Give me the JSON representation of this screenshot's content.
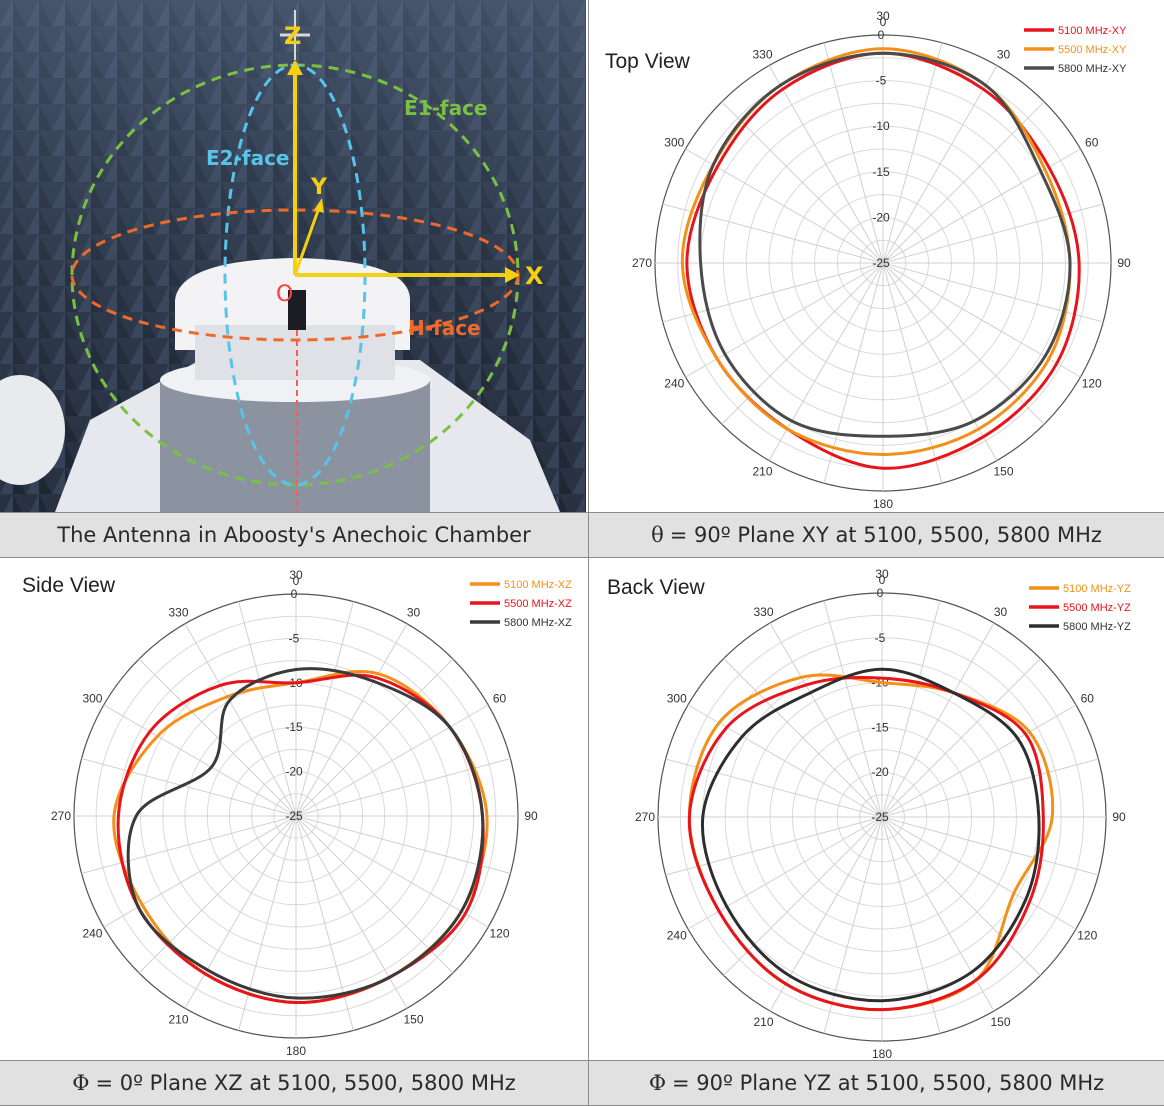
{
  "photo": {
    "caption": "The Antenna in Aboosty's Anechoic Chamber",
    "axis_labels": {
      "z": "Z",
      "y": "Y",
      "x": "X",
      "origin": "O"
    },
    "face_labels": {
      "e1": "E1-face",
      "e2": "E2-face",
      "h": "H-face"
    },
    "colors": {
      "e1": "#7ac143",
      "e2": "#58c4ea",
      "h": "#ee6a2a",
      "axis": "#f4d012"
    }
  },
  "panels": [
    {
      "id": "xy",
      "title": "Top View",
      "caption_symbol": "θ",
      "caption_text": " = 90º Plane XY at 5100, 5500, 5800 MHz"
    },
    {
      "id": "xz",
      "title": "Side View",
      "caption_symbol": "Φ",
      "caption_text": " = 0º Plane XZ at 5100, 5500, 5800 MHz"
    },
    {
      "id": "yz",
      "title": "Back View",
      "caption_symbol": "Φ",
      "caption_text": " = 90º Plane YZ at 5100, 5500, 5800 MHz"
    }
  ],
  "chart_data": [
    {
      "type": "line",
      "id": "xy",
      "title": "Top View",
      "polar": true,
      "angle_ticks": [
        "0",
        "30",
        "60",
        "90",
        "120",
        "150",
        "180",
        "210",
        "240",
        "270",
        "300",
        "330"
      ],
      "top_label": "30",
      "radial_ticks": [
        "0",
        "-5",
        "-10",
        "-15",
        "-20",
        "-25"
      ],
      "rlim": [
        -25,
        0
      ],
      "grid": true,
      "legend": "top-right",
      "angles": [
        0,
        30,
        60,
        90,
        120,
        150,
        180,
        210,
        240,
        270,
        300,
        330
      ],
      "series": [
        {
          "name": "5100 MHz-XY",
          "color": "#e8141c",
          "values": [
            -2,
            -3,
            -4,
            -3.5,
            -3,
            -3,
            -2.5,
            -4,
            -4,
            -3.5,
            -4,
            -3
          ]
        },
        {
          "name": "5500 MHz-XY",
          "color": "#f39019",
          "values": [
            -1.5,
            -2.5,
            -4.5,
            -4.5,
            -4,
            -4,
            -4,
            -4,
            -4,
            -3,
            -3.5,
            -2.5
          ]
        },
        {
          "name": "5800 MHz-XY",
          "color": "#4a4a4a",
          "values": [
            -2,
            -2.5,
            -5,
            -4.5,
            -4.5,
            -5,
            -6,
            -5,
            -5,
            -5,
            -3.5,
            -2.5
          ]
        }
      ]
    },
    {
      "type": "line",
      "id": "xz",
      "title": "Side View",
      "polar": true,
      "angle_ticks": [
        "0",
        "30",
        "60",
        "90",
        "120",
        "150",
        "180",
        "210",
        "240",
        "270",
        "300",
        "330"
      ],
      "top_label": "30",
      "radial_ticks": [
        "0",
        "-5",
        "-10",
        "-15",
        "-20",
        "-25"
      ],
      "rlim": [
        -25,
        0
      ],
      "grid": true,
      "legend": "top-right",
      "angles": [
        0,
        30,
        60,
        90,
        120,
        150,
        180,
        210,
        240,
        270,
        300,
        330
      ],
      "series": [
        {
          "name": "5100 MHz-XZ",
          "color": "#f39019",
          "values": [
            -10,
            -6.5,
            -5,
            -3.5,
            -3.5,
            -4,
            -4,
            -4.5,
            -5,
            -4.5,
            -7,
            -9.5
          ]
        },
        {
          "name": "5500 MHz-XZ",
          "color": "#e8141c",
          "values": [
            -10,
            -7,
            -5,
            -4,
            -3,
            -4,
            -4,
            -4.5,
            -4.5,
            -5,
            -6,
            -8
          ]
        },
        {
          "name": "5800 MHz-XZ",
          "color": "#3a3a3a",
          "values": [
            -8.5,
            -7.5,
            -5,
            -4,
            -3.5,
            -4,
            -4.5,
            -5,
            -4.5,
            -7,
            -14,
            -10
          ]
        }
      ]
    },
    {
      "type": "line",
      "id": "yz",
      "title": "Back View",
      "polar": true,
      "angle_ticks": [
        "0",
        "30",
        "60",
        "90",
        "120",
        "150",
        "180",
        "210",
        "240",
        "270",
        "300",
        "330"
      ],
      "top_label": "30",
      "radial_ticks": [
        "0",
        "-5",
        "-10",
        "-15",
        "-20",
        "-25"
      ],
      "rlim": [
        -25,
        0
      ],
      "grid": true,
      "legend": "top-right",
      "angles": [
        0,
        30,
        60,
        90,
        120,
        150,
        180,
        210,
        240,
        270,
        300,
        330
      ],
      "series": [
        {
          "name": "5100 MHz-YZ",
          "color": "#f39019",
          "values": [
            -10,
            -9,
            -6,
            -6,
            -8,
            -4,
            -3.5,
            -3.5,
            -4,
            -3.5,
            -4,
            -7
          ]
        },
        {
          "name": "5500 MHz-YZ",
          "color": "#e8141c",
          "values": [
            -9.5,
            -9,
            -6.5,
            -7,
            -6,
            -4,
            -3.5,
            -3.5,
            -4,
            -3.5,
            -5,
            -8
          ]
        },
        {
          "name": "5800 MHz-YZ",
          "color": "#2e2e2e",
          "values": [
            -8.5,
            -9,
            -7.5,
            -7.5,
            -6.5,
            -5,
            -4.5,
            -4.5,
            -5,
            -5,
            -7,
            -9
          ]
        }
      ]
    }
  ]
}
